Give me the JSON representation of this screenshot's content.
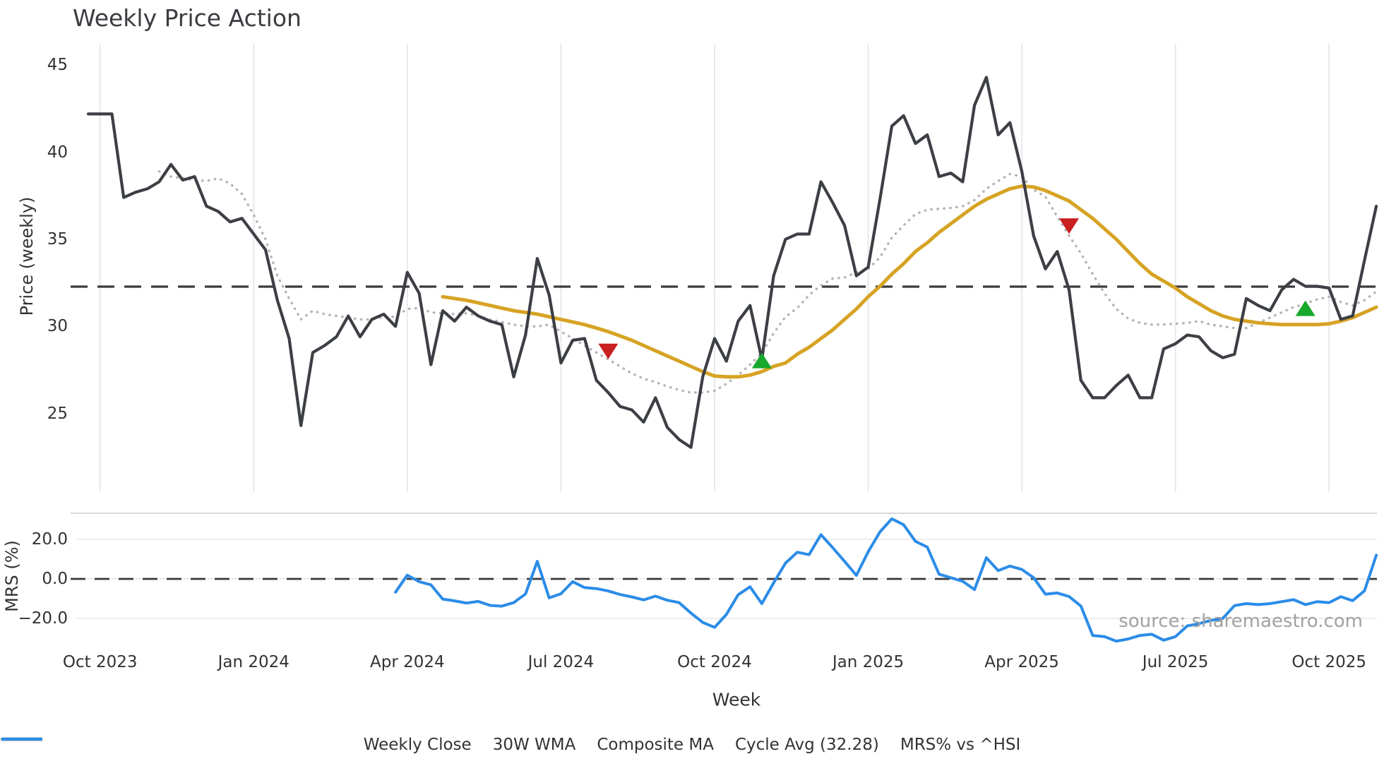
{
  "title": "Weekly Price Action",
  "watermark": "source: sharemaestro.com",
  "colors": {
    "weekly_close": "#3c3f44",
    "wma30": "#d6a323",
    "composite_ma": "#b4b4b4",
    "cycle_avg": "#3a3a3a",
    "mrs": "#2b8ce8",
    "sell_marker": "#c92020",
    "buy_marker": "#17a82c",
    "grid_vertical": "#e8e8ee",
    "grid_horizontal": "#ececec",
    "panel_border": "#d8d8d8",
    "text": "#333333"
  },
  "legend": {
    "items": [
      {
        "label": "Weekly Close",
        "color": "#3c3f44",
        "dash": "",
        "width": 5,
        "cap": "butt"
      },
      {
        "label": "30W WMA",
        "color": "#d6a323",
        "dash": "",
        "width": 5,
        "cap": "butt"
      },
      {
        "label": "Composite MA",
        "color": "#b4b4b4",
        "dash": "0.5 8.5",
        "width": 3.5,
        "cap": "round"
      },
      {
        "label": "Cycle Avg (32.28)",
        "color": "#3a3a3a",
        "dash": "19 15",
        "width": 3.5,
        "cap": "butt"
      },
      {
        "label": "MRS% vs ^HSI",
        "color": "#2b8ce8",
        "dash": "",
        "width": 4.5,
        "cap": "butt"
      }
    ]
  },
  "chart_data": {
    "type": "line",
    "title": "Weekly Price Action",
    "xlabel": "Week",
    "x_unit": "weekly index starting late Sep 2023",
    "x_ticks": [
      {
        "label": "Oct 2023",
        "week": 1
      },
      {
        "label": "Jan 2024",
        "week": 14
      },
      {
        "label": "Apr 2024",
        "week": 27
      },
      {
        "label": "Jul 2024",
        "week": 40
      },
      {
        "label": "Oct 2024",
        "week": 53
      },
      {
        "label": "Jan 2025",
        "week": 66
      },
      {
        "label": "Apr 2025",
        "week": 79
      },
      {
        "label": "Jul 2025",
        "week": 92
      },
      {
        "label": "Oct 2025",
        "week": 105
      }
    ],
    "panels": [
      {
        "id": "price",
        "ylabel": "Price (weekly)",
        "ylim": [
          22.2,
          46.3
        ],
        "yticks": [
          {
            "label": "45",
            "value": 45
          },
          {
            "label": "40",
            "value": 40
          },
          {
            "label": "35",
            "value": 35
          },
          {
            "label": "30",
            "value": 30
          },
          {
            "label": "25",
            "value": 25
          }
        ],
        "reference_line": {
          "name": "Cycle Avg",
          "value": 32.28
        },
        "series": [
          {
            "name": "Weekly Close",
            "start_week": 0,
            "values": [
              42.2,
              42.2,
              42.2,
              37.4,
              37.7,
              37.9,
              38.3,
              39.3,
              38.4,
              38.6,
              36.9,
              36.6,
              36.0,
              36.2,
              35.3,
              34.4,
              31.5,
              29.3,
              24.3,
              28.5,
              28.9,
              29.4,
              30.6,
              29.4,
              30.4,
              30.7,
              30.0,
              33.1,
              31.9,
              27.8,
              30.9,
              30.3,
              31.1,
              30.6,
              30.3,
              30.1,
              27.1,
              29.5,
              33.9,
              31.8,
              27.9,
              29.2,
              29.3,
              26.9,
              26.2,
              25.4,
              25.2,
              24.5,
              25.9,
              24.2,
              23.5,
              23.05,
              27.1,
              29.3,
              28.0,
              30.3,
              31.2,
              28.1,
              32.9,
              35.0,
              35.3,
              35.3,
              38.3,
              37.1,
              35.8,
              32.9,
              33.4,
              37.3,
              41.5,
              42.1,
              40.5,
              41.0,
              38.6,
              38.8,
              38.3,
              42.7,
              44.3,
              41.0,
              41.7,
              38.9,
              35.2,
              33.3,
              34.3,
              32.1,
              26.9,
              25.9,
              25.9,
              26.6,
              27.2,
              25.9,
              25.9,
              28.7,
              29.0,
              29.5,
              29.4,
              28.6,
              28.2,
              28.4,
              31.6,
              31.2,
              30.9,
              32.1,
              32.7,
              32.3,
              32.3,
              32.2,
              30.4,
              30.6,
              33.8,
              36.9
            ]
          },
          {
            "name": "30W WMA",
            "start_week": 30,
            "values": [
              31.7,
              31.6,
              31.5,
              31.35,
              31.2,
              31.05,
              30.9,
              30.8,
              30.7,
              30.55,
              30.4,
              30.25,
              30.1,
              29.9,
              29.7,
              29.45,
              29.2,
              28.9,
              28.6,
              28.3,
              28.0,
              27.7,
              27.4,
              27.15,
              27.1,
              27.1,
              27.2,
              27.4,
              27.7,
              27.9,
              28.4,
              28.8,
              29.3,
              29.8,
              30.4,
              31.0,
              31.7,
              32.3,
              33.0,
              33.6,
              34.3,
              34.8,
              35.4,
              35.9,
              36.4,
              36.9,
              37.3,
              37.6,
              37.9,
              38.05,
              38.0,
              37.8,
              37.5,
              37.2,
              36.7,
              36.2,
              35.6,
              35.0,
              34.3,
              33.6,
              33.0,
              32.6,
              32.2,
              31.7,
              31.3,
              30.9,
              30.6,
              30.4,
              30.3,
              30.2,
              30.15,
              30.1,
              30.1,
              30.1,
              30.1,
              30.15,
              30.3,
              30.5,
              30.8,
              31.1
            ]
          },
          {
            "name": "Composite MA",
            "start_week": 6,
            "values": [
              38.9,
              38.6,
              38.5,
              38.4,
              38.35,
              38.5,
              38.2,
              37.6,
              36.4,
              35.0,
              32.9,
              31.6,
              30.4,
              30.9,
              30.7,
              30.6,
              30.5,
              30.4,
              30.4,
              30.55,
              30.55,
              31.0,
              31.05,
              30.8,
              30.75,
              30.7,
              30.75,
              30.6,
              30.4,
              30.25,
              30.1,
              30.0,
              30.0,
              30.1,
              29.7,
              29.3,
              28.9,
              28.5,
              28.1,
              27.7,
              27.3,
              27.0,
              26.8,
              26.55,
              26.35,
              26.2,
              26.2,
              26.3,
              26.7,
              27.2,
              27.8,
              28.45,
              29.6,
              30.55,
              31.05,
              31.8,
              32.35,
              32.75,
              32.8,
              33.1,
              33.3,
              33.95,
              35.1,
              35.8,
              36.45,
              36.7,
              36.75,
              36.8,
              36.9,
              37.25,
              37.9,
              38.35,
              38.75,
              38.6,
              37.85,
              37.45,
              36.3,
              35.2,
              34.2,
              33.0,
              31.9,
              31.0,
              30.45,
              30.2,
              30.1,
              30.1,
              30.15,
              30.2,
              30.3,
              30.1,
              30.0,
              29.9,
              29.9,
              30.2,
              30.5,
              30.8,
              31.1,
              31.3,
              31.55,
              31.7,
              31.4,
              31.2,
              31.5,
              32.0
            ]
          }
        ],
        "markers": [
          {
            "type": "sell",
            "shape": "triangle-down",
            "week": 44,
            "value": 28.6
          },
          {
            "type": "buy",
            "shape": "triangle-up",
            "week": 57,
            "value": 28.0
          },
          {
            "type": "sell",
            "shape": "triangle-down",
            "week": 83,
            "value": 35.8
          },
          {
            "type": "buy",
            "shape": "triangle-up",
            "week": 103,
            "value": 31.0
          }
        ]
      },
      {
        "id": "mrs",
        "ylabel": "MRS (%)",
        "ylim": [
          -33,
          33
        ],
        "yticks": [
          {
            "label": "20.0",
            "value": 20
          },
          {
            "label": "0.0",
            "value": 0
          },
          {
            "label": "−20.0",
            "value": -20
          }
        ],
        "zero_line": true,
        "series": [
          {
            "name": "MRS% vs ^HSI",
            "start_week": 26,
            "values": [
              -6.7,
              1.9,
              -1.4,
              -3.0,
              -10.2,
              -11.1,
              -12.2,
              -11.4,
              -13.4,
              -13.8,
              -12.0,
              -7.6,
              8.9,
              -9.6,
              -7.5,
              -1.4,
              -4.4,
              -4.9,
              -6.1,
              -7.9,
              -9.1,
              -10.6,
              -8.7,
              -10.8,
              -12.0,
              -17.3,
              -22.0,
              -24.5,
              -18.0,
              -8.0,
              -4.0,
              -12.5,
              -2.0,
              8.0,
              13.5,
              12.3,
              22.4,
              15.8,
              8.9,
              1.8,
              13.7,
              23.8,
              30.4,
              27.4,
              19.0,
              16.1,
              2.4,
              0.6,
              -1.2,
              -5.4,
              10.7,
              4.2,
              6.5,
              4.8,
              0.6,
              -7.7,
              -7.1,
              -8.9,
              -13.7,
              -28.6,
              -29.2,
              -31.5,
              -30.4,
              -28.6,
              -28.0,
              -31.0,
              -29.2,
              -23.8,
              -22.6,
              -21.0,
              -20.0,
              -13.5,
              -12.5,
              -13.0,
              -12.5,
              -11.5,
              -10.5,
              -13.0,
              -11.5,
              -12.0,
              -9.0,
              -11.0,
              -6.0,
              12.0
            ]
          }
        ]
      }
    ]
  }
}
